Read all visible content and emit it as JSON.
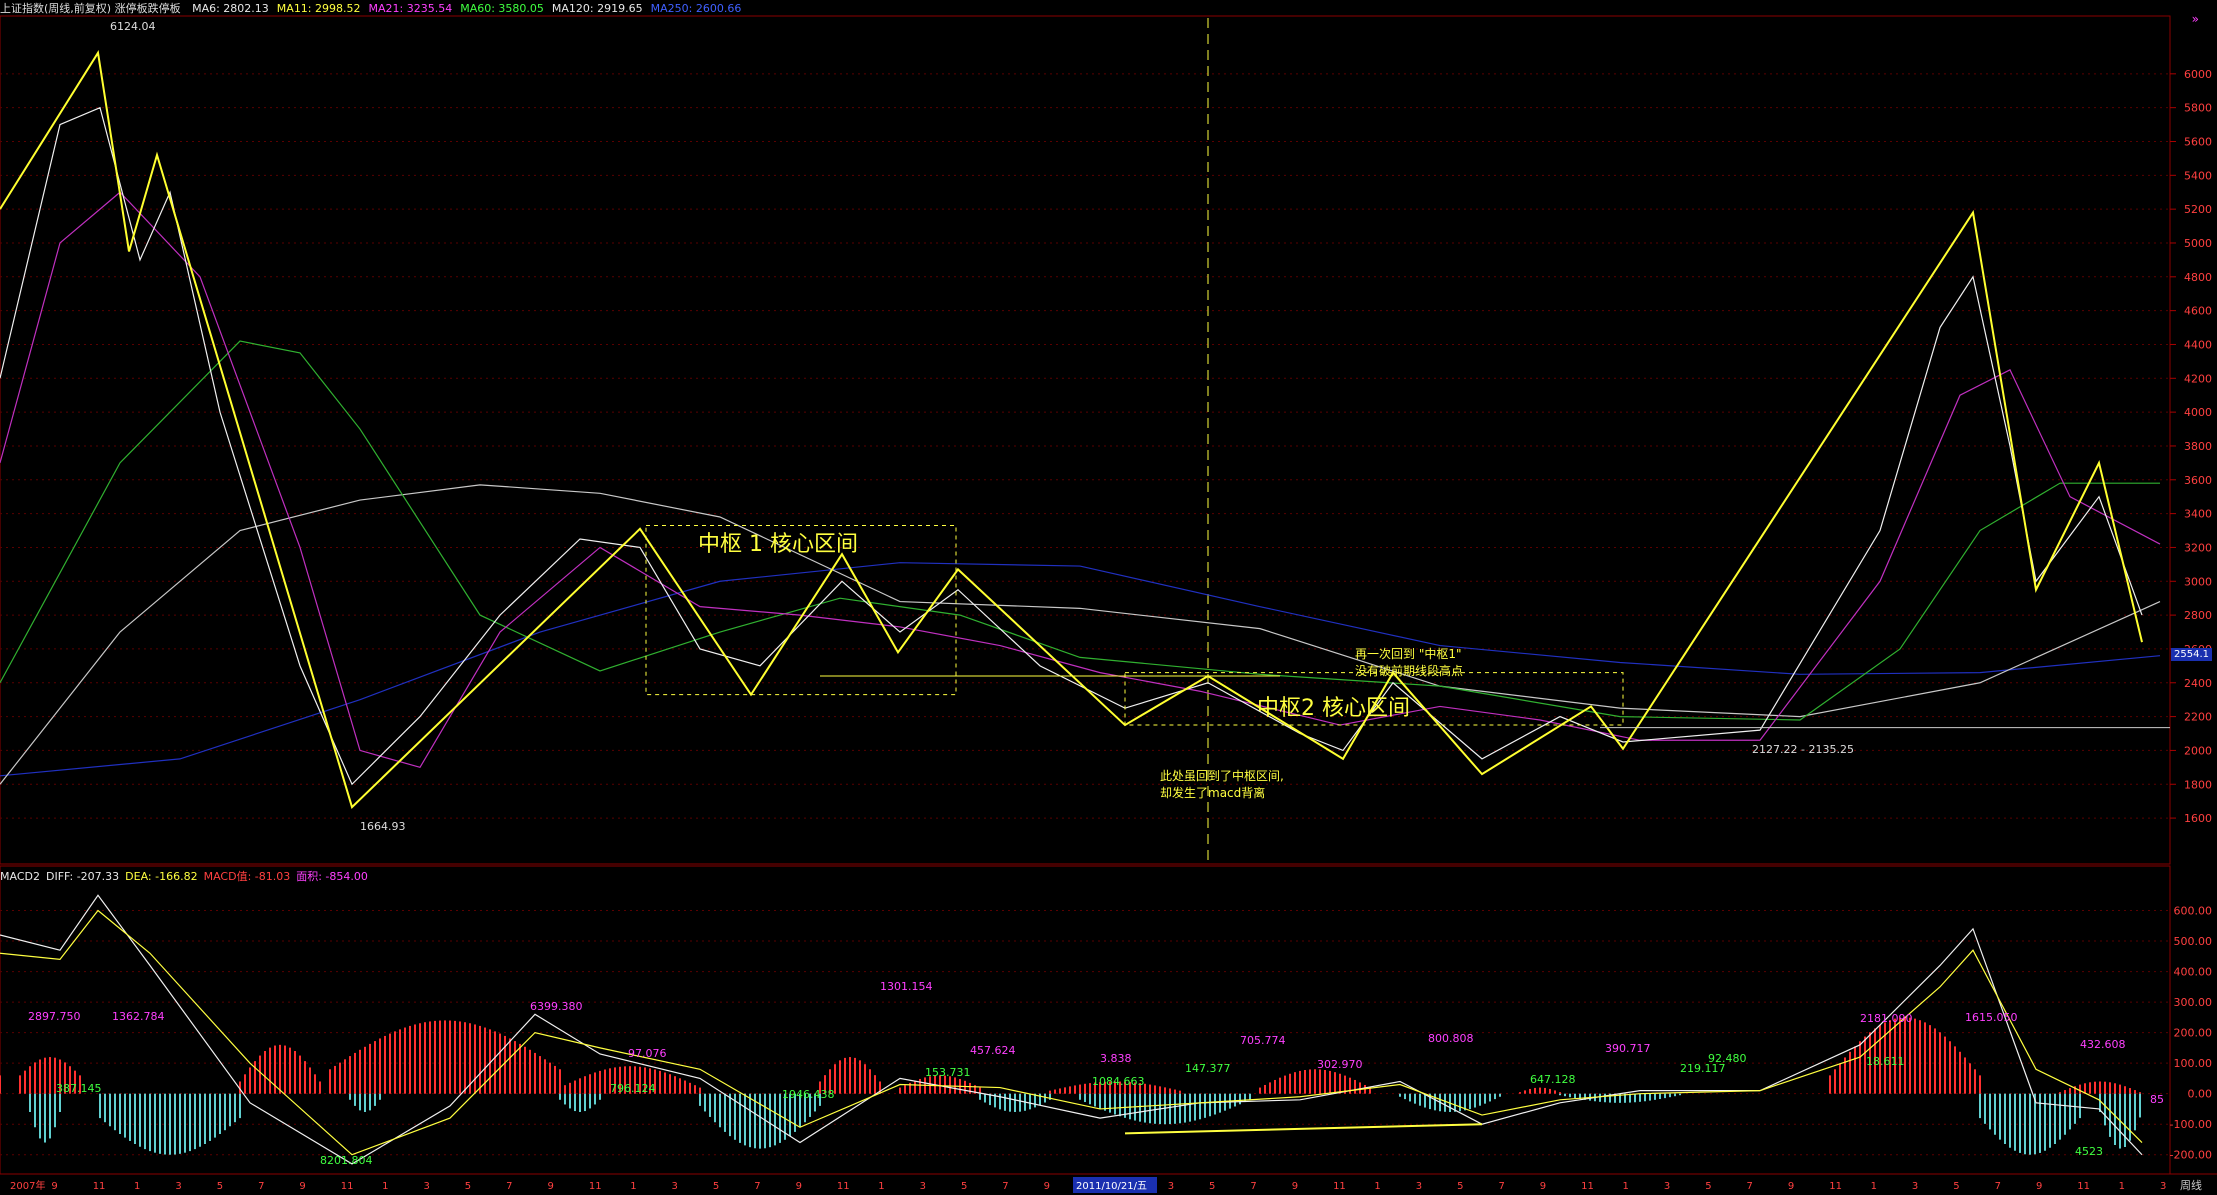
{
  "header": {
    "title": "上证指数(周线,前复权) 涨停板跌停板",
    "ma": [
      {
        "label": "MA6: 2802.13",
        "color": "#e8e8e8"
      },
      {
        "label": "MA11: 2998.52",
        "color": "#ffff40"
      },
      {
        "label": "MA21: 3235.54",
        "color": "#ff40ff"
      },
      {
        "label": "MA60: 3580.05",
        "color": "#40ff40"
      },
      {
        "label": "MA120: 2919.65",
        "color": "#e8e8e8"
      },
      {
        "label": "MA250: 2600.66",
        "color": "#4060ff"
      }
    ],
    "corner_mark": "»"
  },
  "macd_header": [
    {
      "label": "MACD2",
      "color": "#e8e8e8"
    },
    {
      "label": "DIFF: -207.33",
      "color": "#e8e8e8"
    },
    {
      "label": "DEA: -166.82",
      "color": "#ffff40"
    },
    {
      "label": "MACD值: -81.03",
      "color": "#ff4040"
    },
    {
      "label": "面积: -854.00",
      "color": "#ff40ff"
    }
  ],
  "annotations": {
    "zs1": "中枢 1 核心区间",
    "zs2": "中枢2 核心区间",
    "note1_l1": "再一次回到 \"中枢1\"",
    "note1_l2": "没有破前期线段高点",
    "note2_l1": "此处虽回到了中枢区间,",
    "note2_l2": "却发生了macd背离"
  },
  "price_labels": {
    "high": "6124.04",
    "low": "1664.93",
    "range": "2127.22 - 2135.25",
    "last": "2554.1"
  },
  "macd_labels": [
    {
      "t": "2897.750",
      "c": "#ff40ff"
    },
    {
      "t": "1362.784",
      "c": "#ff40ff"
    },
    {
      "t": "387.145",
      "c": "#40ff40"
    },
    {
      "t": "8201.804",
      "c": "#40ff40"
    },
    {
      "t": "6399.380",
      "c": "#ff40ff"
    },
    {
      "t": "796.124",
      "c": "#40ff40"
    },
    {
      "t": "97.076",
      "c": "#ff40ff"
    },
    {
      "t": "1946.438",
      "c": "#40ff40"
    },
    {
      "t": "1301.154",
      "c": "#ff40ff"
    },
    {
      "t": "153.731",
      "c": "#40ff40"
    },
    {
      "t": "457.624",
      "c": "#ff40ff"
    },
    {
      "t": "3.838",
      "c": "#ff40ff"
    },
    {
      "t": "1084.663",
      "c": "#40ff40"
    },
    {
      "t": "147.377",
      "c": "#40ff40"
    },
    {
      "t": "705.774",
      "c": "#ff40ff"
    },
    {
      "t": "302.970",
      "c": "#ff40ff"
    },
    {
      "t": "800.808",
      "c": "#ff40ff"
    },
    {
      "t": "647.128",
      "c": "#40ff40"
    },
    {
      "t": "390.717",
      "c": "#ff40ff"
    },
    {
      "t": "219.117",
      "c": "#40ff40"
    },
    {
      "t": "92.480",
      "c": "#40ff40"
    },
    {
      "t": "2181.090",
      "c": "#ff40ff"
    },
    {
      "t": "18.611",
      "c": "#40ff40"
    },
    {
      "t": "1615.050",
      "c": "#ff40ff"
    },
    {
      "t": "432.608",
      "c": "#ff40ff"
    },
    {
      "t": "4523",
      "c": "#40ff40"
    },
    {
      "t": "85",
      "c": "#ff40ff"
    }
  ],
  "y_ticks": [
    "6000",
    "5800",
    "5600",
    "5400",
    "5200",
    "5000",
    "4800",
    "4600",
    "4400",
    "4200",
    "4000",
    "3800",
    "3600",
    "3400",
    "3200",
    "3000",
    "2800",
    "2600",
    "2400",
    "2200",
    "2000",
    "1800",
    "1600"
  ],
  "macd_ticks": [
    "600.00",
    "500.00",
    "400.00",
    "300.00",
    "200.00",
    "100.00",
    "0.00",
    "-100.00",
    "-200.00"
  ],
  "x_ticks": [
    "2007年",
    "9",
    "11",
    "1",
    "3",
    "5",
    "7",
    "9",
    "11",
    "1",
    "3",
    "5",
    "7",
    "9",
    "11",
    "1",
    "3",
    "5",
    "7",
    "9",
    "11",
    "1",
    "3",
    "5",
    "7",
    "9",
    "11",
    "1",
    "3",
    "5",
    "7",
    "9",
    "11",
    "1",
    "3",
    "5",
    "7",
    "9",
    "11",
    "1",
    "3",
    "5",
    "7",
    "9",
    "11",
    "1",
    "3",
    "5",
    "7",
    "9",
    "11",
    "1",
    "3"
  ],
  "x_highlight": "2011/10/21/五",
  "x_unit": "周线",
  "chart_data": {
    "type": "line",
    "title": "上证指数(周线,前复权)",
    "ylim": [
      1500,
      6200
    ],
    "zigzag_price": [
      [
        0,
        5200
      ],
      [
        98,
        6124
      ],
      [
        129,
        4950
      ],
      [
        157,
        5520
      ],
      [
        352,
        1665
      ],
      [
        640,
        3310
      ],
      [
        751,
        2330
      ],
      [
        842,
        3160
      ],
      [
        898,
        2580
      ],
      [
        958,
        3070
      ],
      [
        1125,
        2150
      ],
      [
        1208,
        2440
      ],
      [
        1343,
        1950
      ],
      [
        1393,
        2460
      ],
      [
        1482,
        1860
      ],
      [
        1591,
        2260
      ],
      [
        1623,
        2010
      ],
      [
        1973,
        5180
      ],
      [
        2036,
        2950
      ],
      [
        2099,
        3700
      ],
      [
        2142,
        2640
      ]
    ],
    "ma_curves": [
      {
        "name": "MA250",
        "color": "#2030c0",
        "pts": [
          [
            0,
            1850
          ],
          [
            180,
            1950
          ],
          [
            360,
            2300
          ],
          [
            540,
            2700
          ],
          [
            720,
            3000
          ],
          [
            900,
            3110
          ],
          [
            1080,
            3090
          ],
          [
            1260,
            2850
          ],
          [
            1440,
            2620
          ],
          [
            1620,
            2520
          ],
          [
            1800,
            2450
          ],
          [
            1980,
            2460
          ],
          [
            2160,
            2560
          ]
        ]
      },
      {
        "name": "MA120",
        "color": "#c8c8c8",
        "pts": [
          [
            0,
            1800
          ],
          [
            120,
            2700
          ],
          [
            240,
            3300
          ],
          [
            360,
            3480
          ],
          [
            480,
            3570
          ],
          [
            600,
            3520
          ],
          [
            720,
            3380
          ],
          [
            900,
            2880
          ],
          [
            1080,
            2840
          ],
          [
            1260,
            2720
          ],
          [
            1440,
            2380
          ],
          [
            1620,
            2250
          ],
          [
            1800,
            2200
          ],
          [
            1980,
            2400
          ],
          [
            2160,
            2880
          ]
        ]
      },
      {
        "name": "MA60",
        "color": "#30b030",
        "pts": [
          [
            0,
            2400
          ],
          [
            120,
            3700
          ],
          [
            240,
            4420
          ],
          [
            300,
            4350
          ],
          [
            360,
            3900
          ],
          [
            480,
            2800
          ],
          [
            600,
            2470
          ],
          [
            720,
            2700
          ],
          [
            840,
            2900
          ],
          [
            960,
            2800
          ],
          [
            1080,
            2550
          ],
          [
            1260,
            2450
          ],
          [
            1440,
            2380
          ],
          [
            1620,
            2200
          ],
          [
            1800,
            2180
          ],
          [
            1900,
            2600
          ],
          [
            1980,
            3300
          ],
          [
            2060,
            3580
          ],
          [
            2160,
            3580
          ]
        ]
      },
      {
        "name": "MA21",
        "color": "#c030c0",
        "pts": [
          [
            0,
            3700
          ],
          [
            60,
            5000
          ],
          [
            120,
            5300
          ],
          [
            200,
            4800
          ],
          [
            300,
            3200
          ],
          [
            360,
            2000
          ],
          [
            420,
            1900
          ],
          [
            500,
            2700
          ],
          [
            600,
            3200
          ],
          [
            700,
            2850
          ],
          [
            800,
            2800
          ],
          [
            900,
            2730
          ],
          [
            1000,
            2620
          ],
          [
            1100,
            2460
          ],
          [
            1200,
            2350
          ],
          [
            1340,
            2150
          ],
          [
            1440,
            2260
          ],
          [
            1540,
            2180
          ],
          [
            1640,
            2060
          ],
          [
            1760,
            2060
          ],
          [
            1880,
            3000
          ],
          [
            1960,
            4100
          ],
          [
            2010,
            4250
          ],
          [
            2070,
            3500
          ],
          [
            2160,
            3220
          ]
        ]
      },
      {
        "name": "MA6",
        "color": "#f0f0f0",
        "pts": [
          [
            0,
            4200
          ],
          [
            60,
            5700
          ],
          [
            100,
            5800
          ],
          [
            140,
            4900
          ],
          [
            170,
            5300
          ],
          [
            220,
            4000
          ],
          [
            300,
            2500
          ],
          [
            352,
            1800
          ],
          [
            420,
            2200
          ],
          [
            500,
            2800
          ],
          [
            580,
            3250
          ],
          [
            640,
            3200
          ],
          [
            700,
            2600
          ],
          [
            760,
            2500
          ],
          [
            842,
            3000
          ],
          [
            900,
            2700
          ],
          [
            958,
            2950
          ],
          [
            1040,
            2500
          ],
          [
            1125,
            2250
          ],
          [
            1208,
            2400
          ],
          [
            1300,
            2100
          ],
          [
            1343,
            2000
          ],
          [
            1393,
            2400
          ],
          [
            1482,
            1950
          ],
          [
            1560,
            2200
          ],
          [
            1623,
            2050
          ],
          [
            1760,
            2120
          ],
          [
            1880,
            3300
          ],
          [
            1940,
            4500
          ],
          [
            1973,
            4800
          ],
          [
            2010,
            3800
          ],
          [
            2036,
            3000
          ],
          [
            2099,
            3500
          ],
          [
            2142,
            2800
          ]
        ]
      }
    ],
    "macd": {
      "ylim": [
        -250,
        700
      ],
      "diff": [
        [
          0,
          520
        ],
        [
          60,
          470
        ],
        [
          98,
          650
        ],
        [
          150,
          420
        ],
        [
          250,
          -30
        ],
        [
          352,
          -230
        ],
        [
          450,
          -40
        ],
        [
          535,
          260
        ],
        [
          600,
          130
        ],
        [
          700,
          50
        ],
        [
          800,
          -160
        ],
        [
          900,
          50
        ],
        [
          1000,
          -10
        ],
        [
          1100,
          -80
        ],
        [
          1200,
          -30
        ],
        [
          1300,
          -20
        ],
        [
          1400,
          40
        ],
        [
          1482,
          -100
        ],
        [
          1560,
          -30
        ],
        [
          1640,
          10
        ],
        [
          1760,
          10
        ],
        [
          1860,
          160
        ],
        [
          1940,
          420
        ],
        [
          1973,
          540
        ],
        [
          2036,
          -30
        ],
        [
          2099,
          -50
        ],
        [
          2142,
          -200
        ]
      ],
      "dea": [
        [
          0,
          460
        ],
        [
          60,
          440
        ],
        [
          98,
          600
        ],
        [
          150,
          460
        ],
        [
          250,
          100
        ],
        [
          352,
          -200
        ],
        [
          450,
          -80
        ],
        [
          535,
          200
        ],
        [
          600,
          150
        ],
        [
          700,
          80
        ],
        [
          800,
          -110
        ],
        [
          900,
          30
        ],
        [
          1000,
          20
        ],
        [
          1100,
          -50
        ],
        [
          1200,
          -30
        ],
        [
          1300,
          -10
        ],
        [
          1400,
          30
        ],
        [
          1482,
          -70
        ],
        [
          1560,
          -20
        ],
        [
          1640,
          0
        ],
        [
          1760,
          10
        ],
        [
          1860,
          120
        ],
        [
          1940,
          350
        ],
        [
          1973,
          470
        ],
        [
          2036,
          80
        ],
        [
          2099,
          -20
        ],
        [
          2142,
          -160
        ]
      ],
      "hist_red": [
        [
          0,
          2,
          60,
          90
        ],
        [
          20,
          80,
          60,
          120
        ],
        [
          240,
          320,
          40,
          160
        ],
        [
          330,
          560,
          80,
          240
        ],
        [
          560,
          700,
          20,
          90
        ],
        [
          820,
          880,
          40,
          120
        ],
        [
          900,
          980,
          20,
          60
        ],
        [
          1050,
          1180,
          10,
          40
        ],
        [
          1260,
          1370,
          20,
          80
        ],
        [
          1520,
          1560,
          5,
          20
        ],
        [
          1830,
          1980,
          60,
          250
        ],
        [
          2060,
          2140,
          5,
          40
        ]
      ],
      "hist_green": [
        [
          30,
          60,
          -60,
          -160
        ],
        [
          100,
          240,
          -80,
          -200
        ],
        [
          350,
          380,
          -20,
          -60
        ],
        [
          560,
          600,
          -20,
          -60
        ],
        [
          700,
          820,
          -40,
          -180
        ],
        [
          980,
          1050,
          -20,
          -60
        ],
        [
          1080,
          1250,
          -20,
          -100
        ],
        [
          1400,
          1500,
          -10,
          -60
        ],
        [
          1560,
          1680,
          -5,
          -30
        ],
        [
          1980,
          2080,
          -80,
          -200
        ],
        [
          2100,
          2142,
          -60,
          -180
        ]
      ]
    }
  }
}
